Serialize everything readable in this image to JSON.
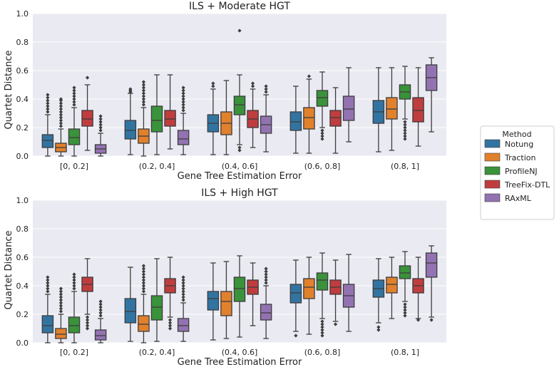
{
  "colors": {
    "Notung": "#3274a1",
    "Traction": "#e1812c",
    "ProfileNJ": "#3a923a",
    "TreeFix-DTL": "#c03d3e",
    "RAxML": "#9372b2",
    "panel_bg": "#eaeaf2",
    "grid": "#ffffff",
    "whisker": "#3d3d3d"
  },
  "legend": {
    "title": "Method",
    "items": [
      "Notung",
      "Traction",
      "ProfileNJ",
      "TreeFix-DTL",
      "RAxML"
    ],
    "position": "right"
  },
  "chart_data": [
    {
      "type": "box",
      "title": "ILS + Moderate HGT",
      "xlabel": "Gene Tree Estimation Error",
      "ylabel": "Quartet Distance",
      "ylim": [
        0,
        1
      ],
      "yticks": [
        "0.0",
        "0.2",
        "0.4",
        "0.6",
        "0.8",
        "1.0"
      ],
      "categories": [
        "[0, 0.2]",
        "(0.2, 0.4]",
        "(0.4, 0.6]",
        "(0.6, 0.8]",
        "(0.8, 1]"
      ],
      "series": [
        {
          "name": "Notung",
          "boxes": [
            {
              "whislo": 0.0,
              "q1": 0.06,
              "med": 0.11,
              "q3": 0.15,
              "whishi": 0.29,
              "fliers": [
                0.31,
                0.33,
                0.35,
                0.37,
                0.39,
                0.41,
                0.43
              ]
            },
            {
              "whislo": 0.01,
              "q1": 0.12,
              "med": 0.18,
              "q3": 0.25,
              "whishi": 0.44,
              "fliers": [
                0.45,
                0.46,
                0.47
              ]
            },
            {
              "whislo": 0.01,
              "q1": 0.17,
              "med": 0.23,
              "q3": 0.29,
              "whishi": 0.47,
              "fliers": [
                0.49,
                0.51
              ]
            },
            {
              "whislo": 0.02,
              "q1": 0.18,
              "med": 0.24,
              "q3": 0.31,
              "whishi": 0.49,
              "fliers": []
            },
            {
              "whislo": 0.03,
              "q1": 0.23,
              "med": 0.31,
              "q3": 0.39,
              "whishi": 0.62,
              "fliers": []
            }
          ]
        },
        {
          "name": "Traction",
          "boxes": [
            {
              "whislo": 0.0,
              "q1": 0.03,
              "med": 0.06,
              "q3": 0.09,
              "whishi": 0.19,
              "fliers": [
                0.21,
                0.23,
                0.25,
                0.27,
                0.29,
                0.31,
                0.33,
                0.35,
                0.37,
                0.39,
                0.4
              ]
            },
            {
              "whislo": 0.0,
              "q1": 0.09,
              "med": 0.14,
              "q3": 0.19,
              "whishi": 0.34,
              "fliers": [
                0.36,
                0.38,
                0.4,
                0.42,
                0.44,
                0.46,
                0.48,
                0.5,
                0.52
              ]
            },
            {
              "whislo": 0.01,
              "q1": 0.15,
              "med": 0.23,
              "q3": 0.31,
              "whishi": 0.53,
              "fliers": []
            },
            {
              "whislo": 0.02,
              "q1": 0.19,
              "med": 0.27,
              "q3": 0.34,
              "whishi": 0.54,
              "fliers": [
                0.56
              ]
            },
            {
              "whislo": 0.04,
              "q1": 0.26,
              "med": 0.33,
              "q3": 0.41,
              "whishi": 0.62,
              "fliers": []
            }
          ]
        },
        {
          "name": "ProfileNJ",
          "boxes": [
            {
              "whislo": 0.0,
              "q1": 0.08,
              "med": 0.13,
              "q3": 0.19,
              "whishi": 0.34,
              "fliers": [
                0.36,
                0.38,
                0.4,
                0.42,
                0.44,
                0.46,
                0.48
              ]
            },
            {
              "whislo": 0.01,
              "q1": 0.17,
              "med": 0.25,
              "q3": 0.35,
              "whishi": 0.57,
              "fliers": []
            },
            {
              "whislo": 0.08,
              "q1": 0.29,
              "med": 0.36,
              "q3": 0.42,
              "whishi": 0.57,
              "fliers": [
                0.04,
                0.06,
                0.88
              ]
            },
            {
              "whislo": 0.2,
              "q1": 0.35,
              "med": 0.41,
              "q3": 0.46,
              "whishi": 0.59,
              "fliers": [
                0.12,
                0.14,
                0.16,
                0.18
              ]
            },
            {
              "whislo": 0.26,
              "q1": 0.4,
              "med": 0.45,
              "q3": 0.5,
              "whishi": 0.63,
              "fliers": [
                0.12,
                0.14,
                0.16,
                0.18,
                0.2,
                0.22,
                0.24
              ]
            }
          ]
        },
        {
          "name": "TreeFix-DTL",
          "boxes": [
            {
              "whislo": 0.04,
              "q1": 0.21,
              "med": 0.26,
              "q3": 0.32,
              "whishi": 0.5,
              "fliers": [
                0.55
              ]
            },
            {
              "whislo": 0.05,
              "q1": 0.21,
              "med": 0.26,
              "q3": 0.32,
              "whishi": 0.57,
              "fliers": []
            },
            {
              "whislo": 0.06,
              "q1": 0.2,
              "med": 0.26,
              "q3": 0.32,
              "whishi": 0.47,
              "fliers": [
                0.49,
                0.51
              ]
            },
            {
              "whislo": 0.02,
              "q1": 0.21,
              "med": 0.27,
              "q3": 0.32,
              "whishi": 0.48,
              "fliers": []
            },
            {
              "whislo": 0.07,
              "q1": 0.24,
              "med": 0.32,
              "q3": 0.41,
              "whishi": 0.62,
              "fliers": []
            }
          ]
        },
        {
          "name": "RAxML",
          "boxes": [
            {
              "whislo": 0.0,
              "q1": 0.02,
              "med": 0.05,
              "q3": 0.08,
              "whishi": 0.16,
              "fliers": [
                0.18,
                0.2,
                0.22,
                0.24,
                0.26,
                0.28
              ]
            },
            {
              "whislo": 0.01,
              "q1": 0.08,
              "med": 0.12,
              "q3": 0.18,
              "whishi": 0.3,
              "fliers": [
                0.32,
                0.34,
                0.36,
                0.38,
                0.4,
                0.42,
                0.44,
                0.46,
                0.48
              ]
            },
            {
              "whislo": 0.03,
              "q1": 0.16,
              "med": 0.22,
              "q3": 0.28,
              "whishi": 0.43,
              "fliers": [
                0.45,
                0.47,
                0.49
              ]
            },
            {
              "whislo": 0.1,
              "q1": 0.25,
              "med": 0.33,
              "q3": 0.42,
              "whishi": 0.62,
              "fliers": []
            },
            {
              "whislo": 0.17,
              "q1": 0.46,
              "med": 0.55,
              "q3": 0.64,
              "whishi": 0.69,
              "fliers": []
            }
          ]
        }
      ]
    },
    {
      "type": "box",
      "title": "ILS + High HGT",
      "xlabel": "Gene Tree Estimation Error",
      "ylabel": "Quartet Distance",
      "ylim": [
        0,
        1
      ],
      "yticks": [
        "0.0",
        "0.2",
        "0.4",
        "0.6",
        "0.8",
        "1.0"
      ],
      "categories": [
        "[0, 0.2]",
        "(0.2, 0.4]",
        "(0.4, 0.6]",
        "(0.6, 0.8]",
        "(0.8, 1]"
      ],
      "series": [
        {
          "name": "Notung",
          "boxes": [
            {
              "whislo": 0.0,
              "q1": 0.07,
              "med": 0.12,
              "q3": 0.19,
              "whishi": 0.34,
              "fliers": [
                0.36,
                0.38,
                0.4,
                0.42,
                0.44,
                0.46
              ]
            },
            {
              "whislo": 0.01,
              "q1": 0.14,
              "med": 0.22,
              "q3": 0.31,
              "whishi": 0.53,
              "fliers": []
            },
            {
              "whislo": 0.02,
              "q1": 0.23,
              "med": 0.31,
              "q3": 0.36,
              "whishi": 0.56,
              "fliers": []
            },
            {
              "whislo": 0.08,
              "q1": 0.28,
              "med": 0.35,
              "q3": 0.41,
              "whishi": 0.58,
              "fliers": [
                0.05
              ]
            },
            {
              "whislo": 0.14,
              "q1": 0.32,
              "med": 0.38,
              "q3": 0.44,
              "whishi": 0.59,
              "fliers": [
                0.09,
                0.11
              ]
            }
          ]
        },
        {
          "name": "Traction",
          "boxes": [
            {
              "whislo": 0.0,
              "q1": 0.03,
              "med": 0.06,
              "q3": 0.1,
              "whishi": 0.2,
              "fliers": [
                0.22,
                0.24,
                0.26,
                0.28,
                0.3,
                0.32,
                0.34,
                0.36,
                0.38
              ]
            },
            {
              "whislo": 0.0,
              "q1": 0.08,
              "med": 0.13,
              "q3": 0.19,
              "whishi": 0.34,
              "fliers": [
                0.36,
                0.38,
                0.4,
                0.42,
                0.44,
                0.46,
                0.48,
                0.5,
                0.52,
                0.54
              ]
            },
            {
              "whislo": 0.03,
              "q1": 0.19,
              "med": 0.29,
              "q3": 0.36,
              "whishi": 0.57,
              "fliers": []
            },
            {
              "whislo": 0.06,
              "q1": 0.31,
              "med": 0.39,
              "q3": 0.45,
              "whishi": 0.6,
              "fliers": []
            },
            {
              "whislo": 0.17,
              "q1": 0.35,
              "med": 0.41,
              "q3": 0.46,
              "whishi": 0.6,
              "fliers": []
            }
          ]
        },
        {
          "name": "ProfileNJ",
          "boxes": [
            {
              "whislo": 0.0,
              "q1": 0.07,
              "med": 0.12,
              "q3": 0.18,
              "whishi": 0.36,
              "fliers": [
                0.38,
                0.4,
                0.42,
                0.44,
                0.46,
                0.48
              ]
            },
            {
              "whislo": 0.01,
              "q1": 0.16,
              "med": 0.25,
              "q3": 0.33,
              "whishi": 0.59,
              "fliers": []
            },
            {
              "whislo": 0.04,
              "q1": 0.29,
              "med": 0.38,
              "q3": 0.46,
              "whishi": 0.61,
              "fliers": []
            },
            {
              "whislo": 0.17,
              "q1": 0.37,
              "med": 0.44,
              "q3": 0.49,
              "whishi": 0.63,
              "fliers": [
                0.05,
                0.07,
                0.09,
                0.11,
                0.13,
                0.15
              ]
            },
            {
              "whislo": 0.29,
              "q1": 0.45,
              "med": 0.49,
              "q3": 0.54,
              "whishi": 0.64,
              "fliers": [
                0.19,
                0.21,
                0.23,
                0.25,
                0.27
              ]
            }
          ]
        },
        {
          "name": "TreeFix-DTL",
          "boxes": [
            {
              "whislo": 0.2,
              "q1": 0.36,
              "med": 0.41,
              "q3": 0.46,
              "whishi": 0.59,
              "fliers": [
                0.1,
                0.12,
                0.14,
                0.16,
                0.18
              ]
            },
            {
              "whislo": 0.18,
              "q1": 0.35,
              "med": 0.4,
              "q3": 0.45,
              "whishi": 0.6,
              "fliers": [
                0.1,
                0.12,
                0.14,
                0.16
              ]
            },
            {
              "whislo": 0.12,
              "q1": 0.34,
              "med": 0.39,
              "q3": 0.44,
              "whishi": 0.56,
              "fliers": []
            },
            {
              "whislo": 0.15,
              "q1": 0.34,
              "med": 0.39,
              "q3": 0.44,
              "whishi": 0.58,
              "fliers": [
                0.13
              ]
            },
            {
              "whislo": 0.17,
              "q1": 0.35,
              "med": 0.4,
              "q3": 0.45,
              "whishi": 0.6,
              "fliers": [
                0.16
              ]
            }
          ]
        },
        {
          "name": "RAxML",
          "boxes": [
            {
              "whislo": 0.0,
              "q1": 0.02,
              "med": 0.05,
              "q3": 0.09,
              "whishi": 0.17,
              "fliers": [
                0.19,
                0.21,
                0.23,
                0.25,
                0.27,
                0.29
              ]
            },
            {
              "whislo": 0.01,
              "q1": 0.08,
              "med": 0.12,
              "q3": 0.17,
              "whishi": 0.28,
              "fliers": [
                0.3,
                0.32,
                0.34,
                0.36,
                0.38,
                0.4,
                0.42,
                0.44,
                0.46
              ]
            },
            {
              "whislo": 0.03,
              "q1": 0.16,
              "med": 0.21,
              "q3": 0.27,
              "whishi": 0.4,
              "fliers": [
                0.42,
                0.44,
                0.46,
                0.48,
                0.5,
                0.52
              ]
            },
            {
              "whislo": 0.08,
              "q1": 0.25,
              "med": 0.33,
              "q3": 0.41,
              "whishi": 0.62,
              "fliers": []
            },
            {
              "whislo": 0.18,
              "q1": 0.46,
              "med": 0.56,
              "q3": 0.63,
              "whishi": 0.68,
              "fliers": [
                0.16
              ]
            }
          ]
        }
      ]
    }
  ]
}
